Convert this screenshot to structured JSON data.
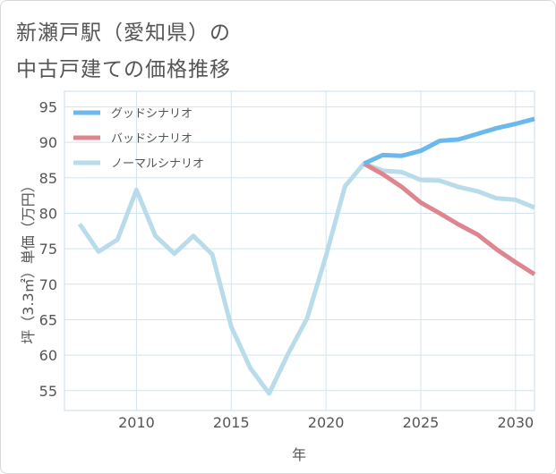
{
  "title": {
    "line1": "新瀬戸駅（愛知県）の",
    "line2": "中古戸建ての価格推移"
  },
  "chart_data": {
    "type": "line",
    "xlabel": "年",
    "ylabel": "坪（3.3㎡）単価（万円）",
    "xlim": [
      2006.2,
      2031
    ],
    "ylim": [
      52.2,
      97.2
    ],
    "xticks": [
      2010,
      2015,
      2020,
      2025,
      2030
    ],
    "yticks": [
      55,
      60,
      65,
      70,
      75,
      80,
      85,
      90,
      95
    ],
    "grid": true,
    "legend_position": "top-left",
    "series": [
      {
        "name": "グッドシナリオ",
        "color": "#6bb8ef",
        "x": [
          2022,
          2023,
          2024,
          2025,
          2026,
          2027,
          2028,
          2029,
          2030,
          2031
        ],
        "values": [
          87.0,
          88.2,
          88.1,
          88.8,
          90.2,
          90.4,
          91.2,
          92.0,
          92.6,
          93.3
        ]
      },
      {
        "name": "バッドシナリオ",
        "color": "#de858f",
        "x": [
          2022,
          2023,
          2024,
          2025,
          2026,
          2027,
          2028,
          2029,
          2030,
          2031
        ],
        "values": [
          87.0,
          85.5,
          83.7,
          81.5,
          80.0,
          78.4,
          77.0,
          74.9,
          73.1,
          71.4
        ]
      },
      {
        "name": "ノーマルシナリオ",
        "color": "#b9dcea",
        "x": [
          2007,
          2008,
          2009,
          2010,
          2011,
          2012,
          2013,
          2014,
          2015,
          2016,
          2017,
          2018,
          2019,
          2020,
          2021,
          2022,
          2023,
          2024,
          2025,
          2026,
          2027,
          2028,
          2029,
          2030,
          2031
        ],
        "values": [
          78.5,
          74.6,
          76.3,
          83.3,
          76.8,
          74.3,
          76.8,
          74.2,
          64.0,
          58.2,
          54.6,
          60.2,
          65.2,
          74.0,
          83.8,
          87.0,
          86.0,
          85.8,
          84.7,
          84.6,
          83.7,
          83.1,
          82.1,
          81.9,
          80.8
        ]
      }
    ]
  }
}
